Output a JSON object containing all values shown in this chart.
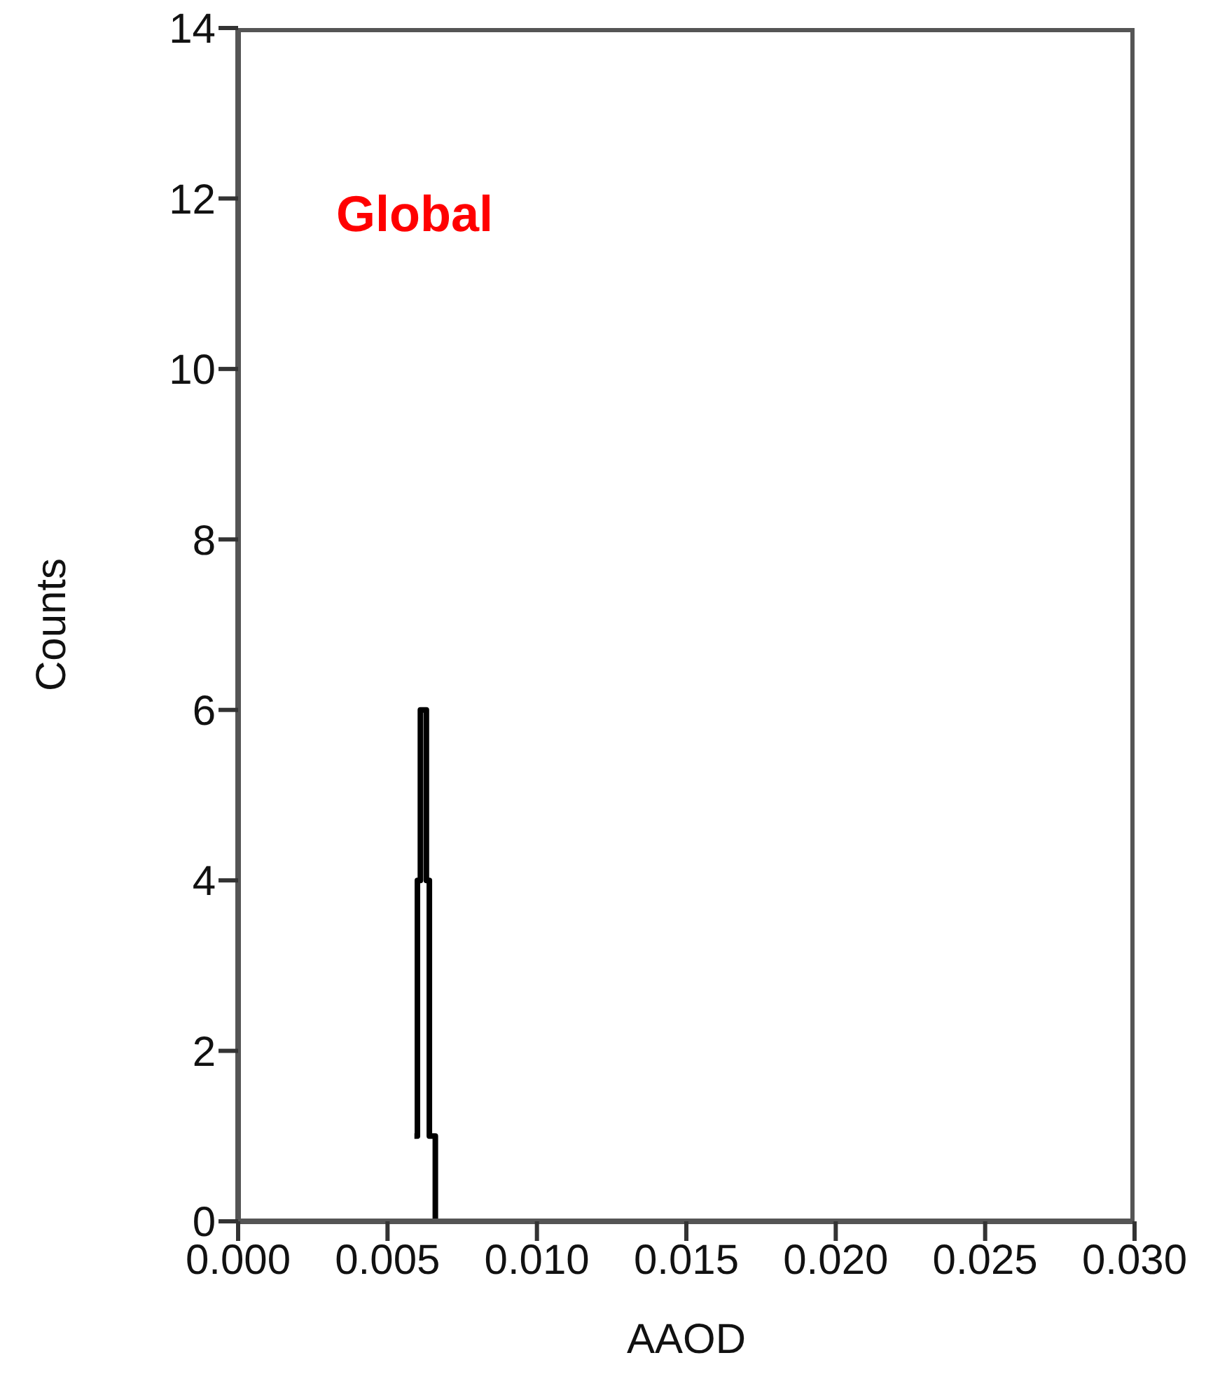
{
  "chart_data": {
    "type": "histogram",
    "xlabel": "AAOD",
    "ylabel": "Counts",
    "annotations": [
      "Global"
    ],
    "bins": [
      0.0059,
      0.006,
      0.0061,
      0.0062,
      0.0063,
      0.0064,
      0.0065,
      0.0066,
      0.0067
    ],
    "values": [
      1,
      4,
      6,
      6,
      4,
      1,
      1,
      0
    ],
    "color": "#000000",
    "xlim": [
      0,
      0.03
    ],
    "xticks": [
      {
        "value": 0,
        "label": "0.000"
      },
      {
        "value": 0.005,
        "label": "0.005"
      },
      {
        "value": 0.01,
        "label": "0.010"
      },
      {
        "value": 0.015,
        "label": "0.015"
      },
      {
        "value": 0.02,
        "label": "0.020"
      },
      {
        "value": 0.025,
        "label": "0.025"
      },
      {
        "value": 0.03,
        "label": "0.030"
      }
    ],
    "ylim": [
      0,
      14
    ],
    "yticks": [
      0,
      2,
      4,
      6,
      8,
      10,
      12,
      14
    ],
    "grid": false
  }
}
